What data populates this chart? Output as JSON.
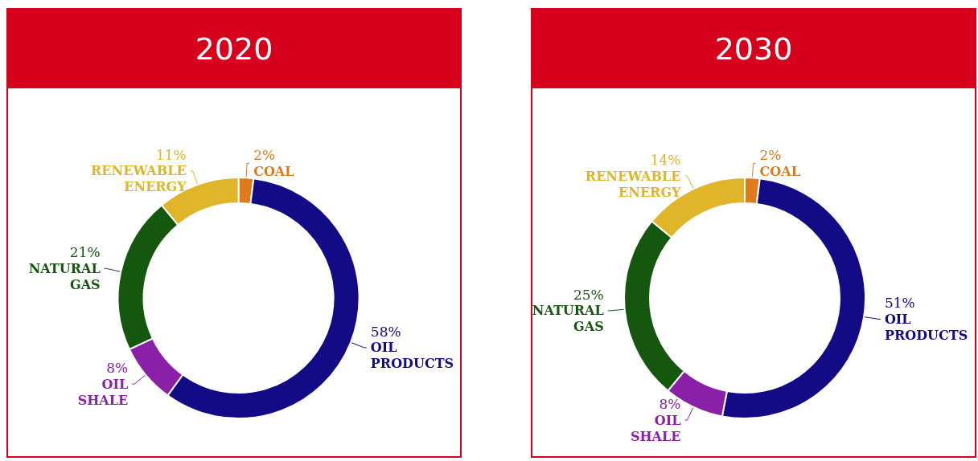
{
  "chart_data": [
    {
      "type": "donut",
      "title": "2020",
      "categories": [
        "COAL",
        "OIL PRODUCTS",
        "OIL SHALE",
        "NATURAL GAS",
        "RENEWABLE ENERGY"
      ],
      "values": [
        2,
        58,
        8,
        21,
        11
      ],
      "value_labels": [
        "2%",
        "58%",
        "8%",
        "21%",
        "11%"
      ],
      "colors": [
        "#e07a1f",
        "#130a85",
        "#8a1fa8",
        "#15570f",
        "#e0b52a"
      ],
      "legend": false
    },
    {
      "type": "donut",
      "title": "2030",
      "categories": [
        "COAL",
        "OIL PRODUCTS",
        "OIL SHALE",
        "NATURAL GAS",
        "RENEWABLE ENERGY"
      ],
      "values": [
        2,
        51,
        8,
        25,
        14
      ],
      "value_labels": [
        "2%",
        "51%",
        "8%",
        "25%",
        "14%"
      ],
      "colors": [
        "#e07a1f",
        "#130a85",
        "#8a1fa8",
        "#15570f",
        "#e0b52a"
      ],
      "legend": false
    }
  ]
}
